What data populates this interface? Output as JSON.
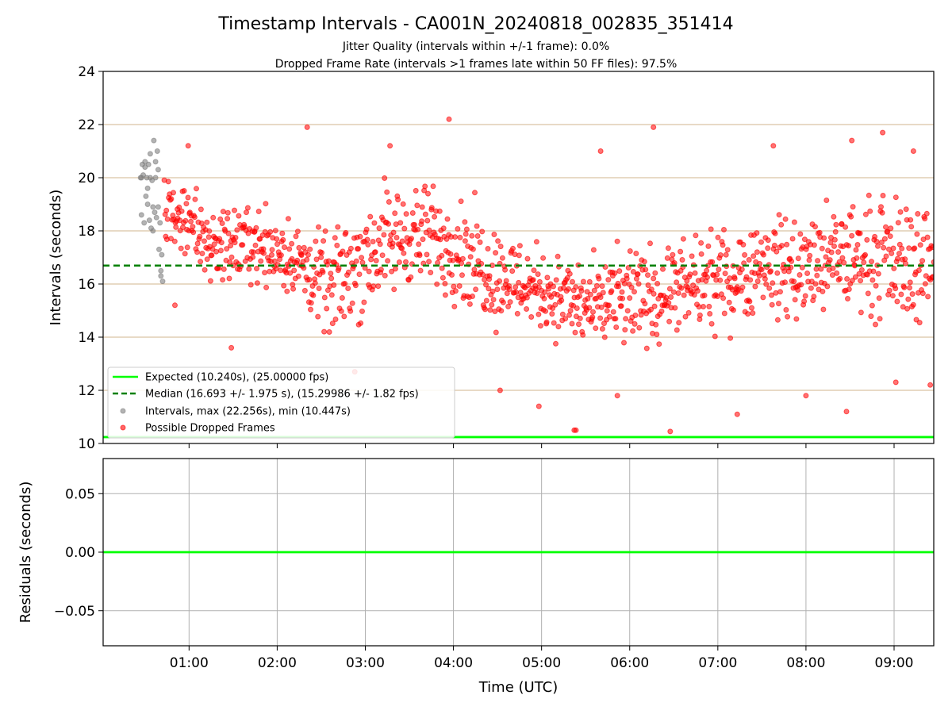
{
  "chart_data": {
    "type": "scatter",
    "title": "Timestamp Intervals - CA001N_20240818_002835_351414",
    "subtitle_lines": [
      "Jitter Quality (intervals within +/-1 frame): 0.0%",
      "Dropped Frame Rate (intervals >1 frames late within 50 FF files): 97.5%"
    ],
    "x_axis": {
      "label": "Time (UTC)",
      "unit": "hours since 00:00 UTC",
      "range": [
        0.025,
        9.45
      ],
      "ticks": [
        1,
        2,
        3,
        4,
        5,
        6,
        7,
        8,
        9
      ],
      "tick_labels": [
        "01:00",
        "02:00",
        "03:00",
        "04:00",
        "05:00",
        "06:00",
        "07:00",
        "08:00",
        "09:00"
      ]
    },
    "top_panel": {
      "ylabel": "Intervals (seconds)",
      "ylim": [
        10,
        24
      ],
      "yticks": [
        10,
        12,
        14,
        16,
        18,
        20,
        22,
        24
      ],
      "grid": "horizontal, tan",
      "expected_interval_s": 10.24,
      "median_interval_s": 16.693,
      "max_interval_s": 22.256,
      "min_interval_s": 10.447,
      "legend": {
        "placement": "lower-left",
        "entries": [
          {
            "label": "Expected (10.240s), (25.00000 fps)",
            "style": "solid-line",
            "color": "#00ff00"
          },
          {
            "label": "Median (16.693 +/- 1.975 s), (15.29986 +/- 1.82 fps)",
            "style": "dashed-line",
            "color": "#008000"
          },
          {
            "label": "Intervals, max (22.256s), min (10.447s)",
            "style": "marker",
            "color": "#808080"
          },
          {
            "label": "Possible Dropped Frames",
            "style": "marker",
            "color": "#ff0000"
          }
        ]
      },
      "series": [
        {
          "name": "Intervals, max (22.256s), min (10.447s)",
          "color": "#808080",
          "x": [
            0.45,
            0.46,
            0.47,
            0.48,
            0.49,
            0.5,
            0.51,
            0.52,
            0.53,
            0.54,
            0.55,
            0.56,
            0.57,
            0.58,
            0.59,
            0.6,
            0.61,
            0.62,
            0.63,
            0.64,
            0.65,
            0.66,
            0.67,
            0.68,
            0.69,
            0.7,
            0.46,
            0.5,
            0.53,
            0.56,
            0.59,
            0.62,
            0.65,
            0.68
          ],
          "y": [
            20.0,
            18.6,
            20.5,
            20.1,
            18.3,
            20.4,
            19.3,
            20.0,
            19.6,
            20.5,
            18.4,
            20.9,
            18.1,
            19.9,
            18.9,
            21.4,
            18.7,
            20.6,
            18.5,
            21.0,
            20.3,
            17.3,
            18.3,
            16.3,
            17.1,
            16.1,
            20.0,
            20.6,
            19.0,
            20.0,
            18.0,
            20.0,
            18.9,
            16.5
          ]
        },
        {
          "name": "Possible Dropped Frames",
          "color": "#ff0000",
          "generation": "approximately 1200 interval points, about one every 27.5 s, from 00:43 to 09:27 UTC",
          "x_range": [
            0.72,
            9.45
          ],
          "band_low": [
            [
              0.7,
              16.6
            ],
            [
              1.3,
              15.6
            ],
            [
              1.8,
              15.4
            ],
            [
              2.1,
              15.0
            ],
            [
              2.6,
              13.3
            ],
            [
              3.0,
              13.7
            ],
            [
              3.5,
              15.2
            ],
            [
              4.0,
              14.6
            ],
            [
              4.5,
              13.6
            ],
            [
              5.0,
              13.6
            ],
            [
              5.5,
              12.8
            ],
            [
              6.0,
              12.6
            ],
            [
              6.5,
              13.3
            ],
            [
              7.0,
              13.5
            ],
            [
              7.5,
              14.2
            ],
            [
              8.0,
              13.6
            ],
            [
              8.5,
              14.1
            ],
            [
              9.0,
              13.6
            ],
            [
              9.45,
              13.6
            ]
          ],
          "band_high": [
            [
              0.7,
              21.0
            ],
            [
              1.3,
              19.4
            ],
            [
              1.8,
              19.7
            ],
            [
              2.1,
              19.2
            ],
            [
              2.6,
              18.4
            ],
            [
              3.0,
              20.5
            ],
            [
              3.5,
              20.6
            ],
            [
              4.0,
              20.4
            ],
            [
              4.5,
              19.0
            ],
            [
              5.0,
              18.0
            ],
            [
              5.5,
              17.4
            ],
            [
              6.0,
              18.2
            ],
            [
              6.5,
              18.2
            ],
            [
              7.0,
              18.6
            ],
            [
              7.5,
              19.3
            ],
            [
              8.0,
              19.5
            ],
            [
              8.5,
              20.0
            ],
            [
              9.0,
              20.2
            ],
            [
              9.45,
              20.0
            ]
          ],
          "notable_points": [
            {
              "x": 3.95,
              "y": 22.2
            },
            {
              "x": 2.34,
              "y": 21.9
            },
            {
              "x": 6.27,
              "y": 21.9
            },
            {
              "x": 8.87,
              "y": 21.7
            },
            {
              "x": 8.52,
              "y": 21.4
            },
            {
              "x": 3.28,
              "y": 21.2
            },
            {
              "x": 0.99,
              "y": 21.2
            },
            {
              "x": 5.67,
              "y": 21.0
            },
            {
              "x": 7.63,
              "y": 21.2
            },
            {
              "x": 9.22,
              "y": 21.0
            },
            {
              "x": 2.88,
              "y": 12.7
            },
            {
              "x": 8.46,
              "y": 11.2
            },
            {
              "x": 7.22,
              "y": 11.1
            },
            {
              "x": 4.97,
              "y": 11.4
            },
            {
              "x": 5.86,
              "y": 11.8
            },
            {
              "x": 8.0,
              "y": 11.8
            },
            {
              "x": 5.37,
              "y": 10.5
            },
            {
              "x": 5.39,
              "y": 10.5
            },
            {
              "x": 6.46,
              "y": 10.45
            },
            {
              "x": 9.41,
              "y": 12.2
            },
            {
              "x": 9.02,
              "y": 12.3
            },
            {
              "x": 4.53,
              "y": 12.0
            },
            {
              "x": 1.48,
              "y": 13.6
            },
            {
              "x": 0.84,
              "y": 15.2
            }
          ]
        }
      ]
    },
    "bottom_panel": {
      "ylabel": "Residuals (seconds)",
      "ylim": [
        -0.08,
        0.08
      ],
      "yticks": [
        0.05,
        0.0,
        -0.05
      ],
      "ytick_labels": [
        "0.05",
        "0.00",
        "−0.05"
      ],
      "grid": "both, gray",
      "series": [
        {
          "color": "#00ff00",
          "x": [
            0.025,
            9.45
          ],
          "y": [
            0.0,
            0.0
          ]
        }
      ]
    }
  }
}
